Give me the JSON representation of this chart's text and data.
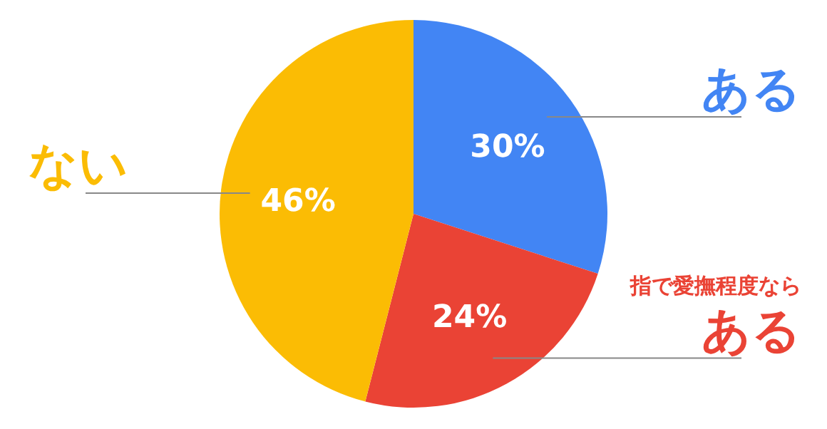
{
  "chart_data": {
    "type": "pie",
    "categories": [
      "ある",
      "ある",
      "ない"
    ],
    "values": [
      30,
      24,
      46
    ],
    "colors": [
      "#4285f4",
      "#ea4335",
      "#fbbc04"
    ],
    "value_labels": [
      "30%",
      "24%",
      "46%"
    ],
    "annotations": [
      "指で愛撫程度なら"
    ]
  }
}
